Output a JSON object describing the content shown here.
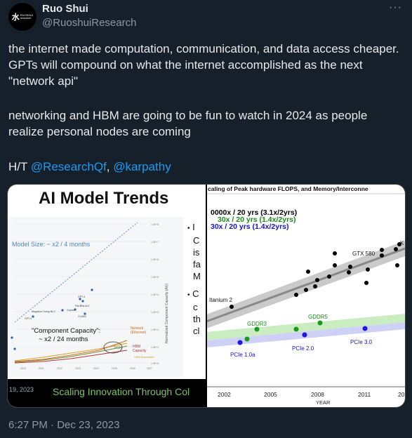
{
  "author": {
    "name": "Ruo Shui",
    "handle": "@RuoshuiResearch",
    "avatar_logo": "水",
    "avatar_text": "RUOSHUI research"
  },
  "tweet": {
    "para1": "the internet made computation, communication, and data access cheaper. GPTs will compound on what the internet accomplished as the next \"network api\"",
    "para2": "networking and HBM are going to be fun to watch in 2024 as people realize personal nodes are coming",
    "ht_prefix": "H/T ",
    "mention1": "@ResearchQf",
    "separator": ", ",
    "mention2": "@karpathy",
    "timestamp": "6:27 PM · Dec 23, 2023"
  },
  "left_slide": {
    "title": "AI Model Trends",
    "model_size_label": "Model Size: ~ x2 / 4 months",
    "component_capacity_label": "\"Component Capacity\":",
    "component_capacity_rate": "~ x2 / 24 months",
    "y_axis_label": "Normalized Component Capacity (AU)",
    "legend_network": "Network",
    "legend_ethernet": "(Ethernet)",
    "legend_hbm": "HBM",
    "legend_capacity": "Capacity",
    "legend_bandwidth": "HBM Bandwidth",
    "legend_pcie": "PCIe",
    "model_labels": [
      "GPT-3",
      "Megatron-Turing NLG",
      "PaLM",
      "Gopher",
      "GPT-4",
      "PaLM-E",
      "CLAW2"
    ],
    "x_ticks": [
      "2020",
      "2021",
      "2022",
      "2023",
      "2024",
      "2025",
      "2026",
      "2027"
    ],
    "y_ticks": [
      "1.0E+8",
      "1.0E+7",
      "1.0E+6",
      "1.0E+5",
      "1.0E+4",
      "1.0E+3",
      "1.0E+2",
      "1.0E+1",
      "1.0E+0"
    ],
    "footer_date": "19, 2023",
    "footer_slogan": "Scaling Innovation Through Col",
    "bullet_fragments": [
      "I",
      "C",
      "is",
      "fa",
      "M",
      "C",
      "c",
      "th",
      "cl"
    ]
  },
  "right_slide": {
    "title": "caling of Peak hardware FLOPS, and Memory/Interconne",
    "legend": [
      {
        "text": "0000x / 20 yrs (3.1x/2yrs)",
        "color": "#000000"
      },
      {
        "text": "30x / 20 yrs (1.4x/2yrs)",
        "color": "#1a8a1a"
      },
      {
        "text": "30x / 20 yrs (1.4x/2yrs)",
        "color": "#1515cc"
      }
    ],
    "x_label": "YEAR",
    "x_ticks": [
      "2002",
      "2005",
      "2008",
      "2011",
      "20"
    ],
    "point_labels": {
      "itanium": "Itanium 2",
      "gtx": "GTX 580",
      "k": "K",
      "gddr3": "GDDR3",
      "gddr5": "GDDR5",
      "pcie1": "PCIe 1.0a",
      "pcie2": "PCIe 2.0",
      "pcie3": "PCIe 3.0"
    }
  }
}
